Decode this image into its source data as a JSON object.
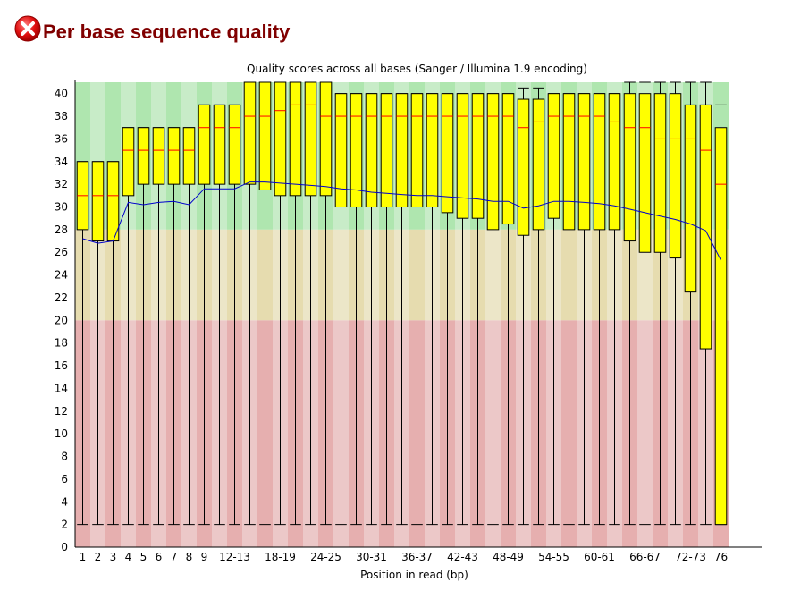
{
  "page": {
    "title": "Per base sequence quality",
    "status_icon": "error-x-icon"
  },
  "chart_data": {
    "type": "box",
    "title": "Quality scores across all bases (Sanger / Illumina 1.9 encoding)",
    "xlabel": "Position in read (bp)",
    "ylabel": "",
    "ylim": [
      0,
      41
    ],
    "yticks": [
      0,
      2,
      4,
      6,
      8,
      10,
      12,
      14,
      16,
      18,
      20,
      22,
      24,
      26,
      28,
      30,
      32,
      34,
      36,
      38,
      40
    ],
    "bands": [
      {
        "from": 28,
        "to": 41,
        "color_a": "#afe6af",
        "color_b": "#c8ecc8"
      },
      {
        "from": 20,
        "to": 28,
        "color_a": "#e6dcaf",
        "color_b": "#ece6c8"
      },
      {
        "from": 0,
        "to": 20,
        "color_a": "#e6afaf",
        "color_b": "#ecc8c8"
      }
    ],
    "colors": {
      "box": "#ffff00",
      "median": "#ff0000",
      "mean": "#0000cc",
      "whisker": "#000000"
    },
    "categories": [
      "1",
      "2",
      "3",
      "4",
      "5",
      "6",
      "7",
      "8",
      "9",
      "10-11",
      "12-13",
      "14-15",
      "16-17",
      "18-19",
      "20-21",
      "22-23",
      "24-25",
      "26-27",
      "28-29",
      "30-31",
      "32-33",
      "34-35",
      "36-37",
      "38-39",
      "40-41",
      "42-43",
      "44-45",
      "46-47",
      "48-49",
      "50-51",
      "52-53",
      "54-55",
      "56-57",
      "58-59",
      "60-61",
      "62-63",
      "64-65",
      "66-67",
      "68-69",
      "70-71",
      "72-73",
      "74-75",
      "76"
    ],
    "tick_labels": [
      "1",
      "2",
      "3",
      "4",
      "5",
      "6",
      "7",
      "8",
      "9",
      "",
      "12-13",
      "",
      "",
      "18-19",
      "",
      "",
      "24-25",
      "",
      "",
      "30-31",
      "",
      "",
      "36-37",
      "",
      "",
      "42-43",
      "",
      "",
      "48-49",
      "",
      "",
      "54-55",
      "",
      "",
      "60-61",
      "",
      "",
      "66-67",
      "",
      "",
      "72-73",
      "",
      "76"
    ],
    "q1": [
      28,
      27,
      27,
      31,
      32,
      32,
      32,
      32,
      32,
      32,
      32,
      32,
      31.5,
      31,
      31,
      31,
      31,
      30,
      30,
      30,
      30,
      30,
      30,
      30,
      29.5,
      29,
      29,
      28,
      28.5,
      27.5,
      28,
      29,
      28,
      28,
      28,
      28,
      27,
      26,
      26,
      25.5,
      22.5,
      17.5,
      2
    ],
    "median": [
      31,
      31,
      31,
      35,
      35,
      35,
      35,
      35,
      37,
      37,
      37,
      38,
      38,
      38.5,
      39,
      39,
      38,
      38,
      38,
      38,
      38,
      38,
      38,
      38,
      38,
      38,
      38,
      38,
      38,
      37,
      37.5,
      38,
      38,
      38,
      38,
      37.5,
      37,
      37,
      36,
      36,
      36,
      35,
      32
    ],
    "q3": [
      34,
      34,
      34,
      37,
      37,
      37,
      37,
      37,
      39,
      39,
      39,
      41,
      41,
      41,
      41,
      41,
      41,
      40,
      40,
      40,
      40,
      40,
      40,
      40,
      40,
      40,
      40,
      40,
      40,
      39.5,
      39.5,
      40,
      40,
      40,
      40,
      40,
      40,
      40,
      40,
      40,
      39,
      39,
      37
    ],
    "low": [
      2,
      2,
      2,
      2,
      2,
      2,
      2,
      2,
      2,
      2,
      2,
      2,
      2,
      2,
      2,
      2,
      2,
      2,
      2,
      2,
      2,
      2,
      2,
      2,
      2,
      2,
      2,
      2,
      2,
      2,
      2,
      2,
      2,
      2,
      2,
      2,
      2,
      2,
      2,
      2,
      2,
      2,
      2
    ],
    "high": [
      34,
      34,
      34,
      37,
      37,
      37,
      37,
      37,
      39,
      39,
      39,
      41,
      41,
      41,
      41,
      41,
      41,
      40,
      40,
      40,
      40,
      40,
      40,
      40,
      40,
      40,
      40,
      40,
      40,
      40.5,
      40.5,
      40,
      40,
      40,
      40,
      40,
      41,
      41,
      41,
      41,
      41,
      41,
      39
    ],
    "mean": [
      27.2,
      26.8,
      27,
      30.4,
      30.2,
      30.4,
      30.5,
      30.2,
      31.6,
      31.6,
      31.6,
      32.2,
      32.2,
      32.1,
      32,
      31.9,
      31.8,
      31.6,
      31.5,
      31.3,
      31.2,
      31.1,
      31.0,
      31.0,
      30.9,
      30.8,
      30.7,
      30.5,
      30.5,
      29.9,
      30.1,
      30.5,
      30.5,
      30.4,
      30.3,
      30.1,
      29.8,
      29.5,
      29.2,
      28.9,
      28.5,
      27.9,
      25.3
    ]
  }
}
